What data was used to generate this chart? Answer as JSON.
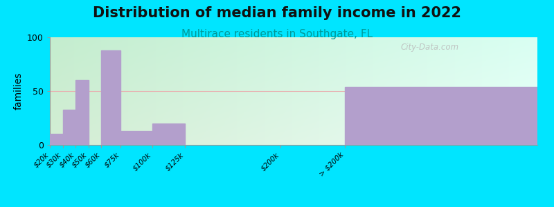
{
  "title": "Distribution of median family income in 2022",
  "subtitle": "Multirace residents in Southgate, FL",
  "ylabel": "families",
  "bar_color": "#b39fcc",
  "background_outer": "#00e5ff",
  "background_left": "#d4ecd4",
  "background_right": "#f0f0e8",
  "ylim": [
    0,
    100
  ],
  "yticks": [
    0,
    50,
    100
  ],
  "title_fontsize": 15,
  "subtitle_fontsize": 11,
  "ylabel_fontsize": 10,
  "watermark": "City-Data.com",
  "gridline_color": "#e8b0b0",
  "gridline_y": 50,
  "tick_labels": [
    "$20k",
    "$30k",
    "$40k",
    "$50k",
    "$60k",
    "$75k",
    "$100k",
    "$125k",
    "$200k",
    "> $200k"
  ],
  "bar_lefts": [
    20,
    30,
    40,
    50,
    60,
    75,
    100,
    125,
    150,
    250
  ],
  "bar_widths": [
    10,
    10,
    10,
    10,
    15,
    25,
    25,
    25,
    100,
    150
  ],
  "bar_heights": [
    10,
    33,
    60,
    0,
    88,
    13,
    20,
    0,
    0,
    54
  ],
  "tick_positions": [
    20,
    30,
    40,
    50,
    60,
    75,
    100,
    125,
    200,
    250
  ],
  "xlim": [
    20,
    400
  ]
}
